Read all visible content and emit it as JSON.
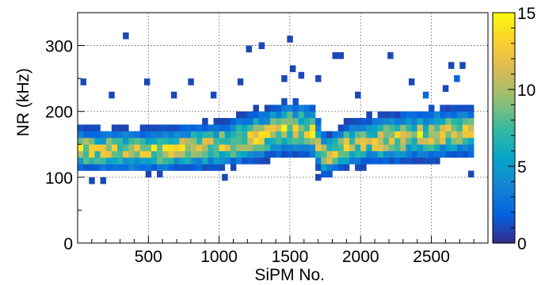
{
  "chart_data": {
    "type": "heatmap",
    "xlabel": "SiPM No.",
    "ylabel": "NR (kHz)",
    "xlim": [
      0,
      2900
    ],
    "ylim": [
      0,
      350
    ],
    "x_ticks": [
      500,
      1000,
      1500,
      2000,
      2500
    ],
    "x_tick_labels": [
      "500",
      "1000",
      "1500",
      "2000",
      "2500"
    ],
    "y_ticks": [
      0,
      100,
      200,
      300
    ],
    "y_tick_labels": [
      "0",
      "100",
      "200",
      "300"
    ],
    "color_scale": {
      "min": 0,
      "max": 15,
      "ticks": [
        0,
        5,
        10,
        15
      ],
      "tick_labels": [
        "0",
        "5",
        "10",
        "15"
      ],
      "colormap": "parula",
      "colors": [
        "#352a87",
        "#0363e1",
        "#1485d4",
        "#06a7c6",
        "#38b99e",
        "#92bf73",
        "#d9ba56",
        "#fcce2e",
        "#f9fb0e"
      ]
    },
    "grid": true,
    "bin_width_x": 40,
    "bin_width_y": 10,
    "series": [
      {
        "x_range": [
          0,
          2800
        ],
        "profile": [
          {
            "x": 0,
            "center": 142,
            "halfwidth": 32
          },
          {
            "x": 500,
            "center": 140,
            "halfwidth": 32
          },
          {
            "x": 1000,
            "center": 148,
            "halfwidth": 35
          },
          {
            "x": 1500,
            "center": 175,
            "halfwidth": 40
          },
          {
            "x": 1650,
            "center": 172,
            "halfwidth": 40
          },
          {
            "x": 1750,
            "center": 132,
            "halfwidth": 30
          },
          {
            "x": 1950,
            "center": 152,
            "halfwidth": 35
          },
          {
            "x": 2500,
            "center": 165,
            "halfwidth": 38
          },
          {
            "x": 2800,
            "center": 170,
            "halfwidth": 38
          }
        ],
        "peak_count": 12
      }
    ],
    "outliers": [
      {
        "x": 340,
        "y": 315,
        "count": 1
      },
      {
        "x": 1210,
        "y": 295,
        "count": 1
      },
      {
        "x": 1300,
        "y": 300,
        "count": 1
      },
      {
        "x": 1500,
        "y": 310,
        "count": 1
      },
      {
        "x": 1820,
        "y": 285,
        "count": 1
      },
      {
        "x": 1860,
        "y": 285,
        "count": 1
      },
      {
        "x": 2210,
        "y": 285,
        "count": 1
      },
      {
        "x": 2640,
        "y": 270,
        "count": 1
      },
      {
        "x": 2720,
        "y": 270,
        "count": 1
      },
      {
        "x": 2680,
        "y": 250,
        "count": 2
      },
      {
        "x": 40,
        "y": 245,
        "count": 1
      },
      {
        "x": 240,
        "y": 225,
        "count": 1
      },
      {
        "x": 490,
        "y": 245,
        "count": 1
      },
      {
        "x": 800,
        "y": 245,
        "count": 1
      },
      {
        "x": 1150,
        "y": 245,
        "count": 1
      },
      {
        "x": 1460,
        "y": 250,
        "count": 1
      },
      {
        "x": 1520,
        "y": 265,
        "count": 1
      },
      {
        "x": 1580,
        "y": 255,
        "count": 1
      },
      {
        "x": 1700,
        "y": 250,
        "count": 1
      },
      {
        "x": 2360,
        "y": 245,
        "count": 1
      },
      {
        "x": 2600,
        "y": 235,
        "count": 1
      },
      {
        "x": 680,
        "y": 225,
        "count": 1
      },
      {
        "x": 960,
        "y": 225,
        "count": 1
      },
      {
        "x": 1980,
        "y": 225,
        "count": 1
      },
      {
        "x": 2460,
        "y": 225,
        "count": 2
      },
      {
        "x": 100,
        "y": 95,
        "count": 1
      },
      {
        "x": 180,
        "y": 95,
        "count": 1
      },
      {
        "x": 1040,
        "y": 100,
        "count": 1
      },
      {
        "x": 1700,
        "y": 100,
        "count": 1
      },
      {
        "x": 2780,
        "y": 105,
        "count": 1
      }
    ]
  }
}
